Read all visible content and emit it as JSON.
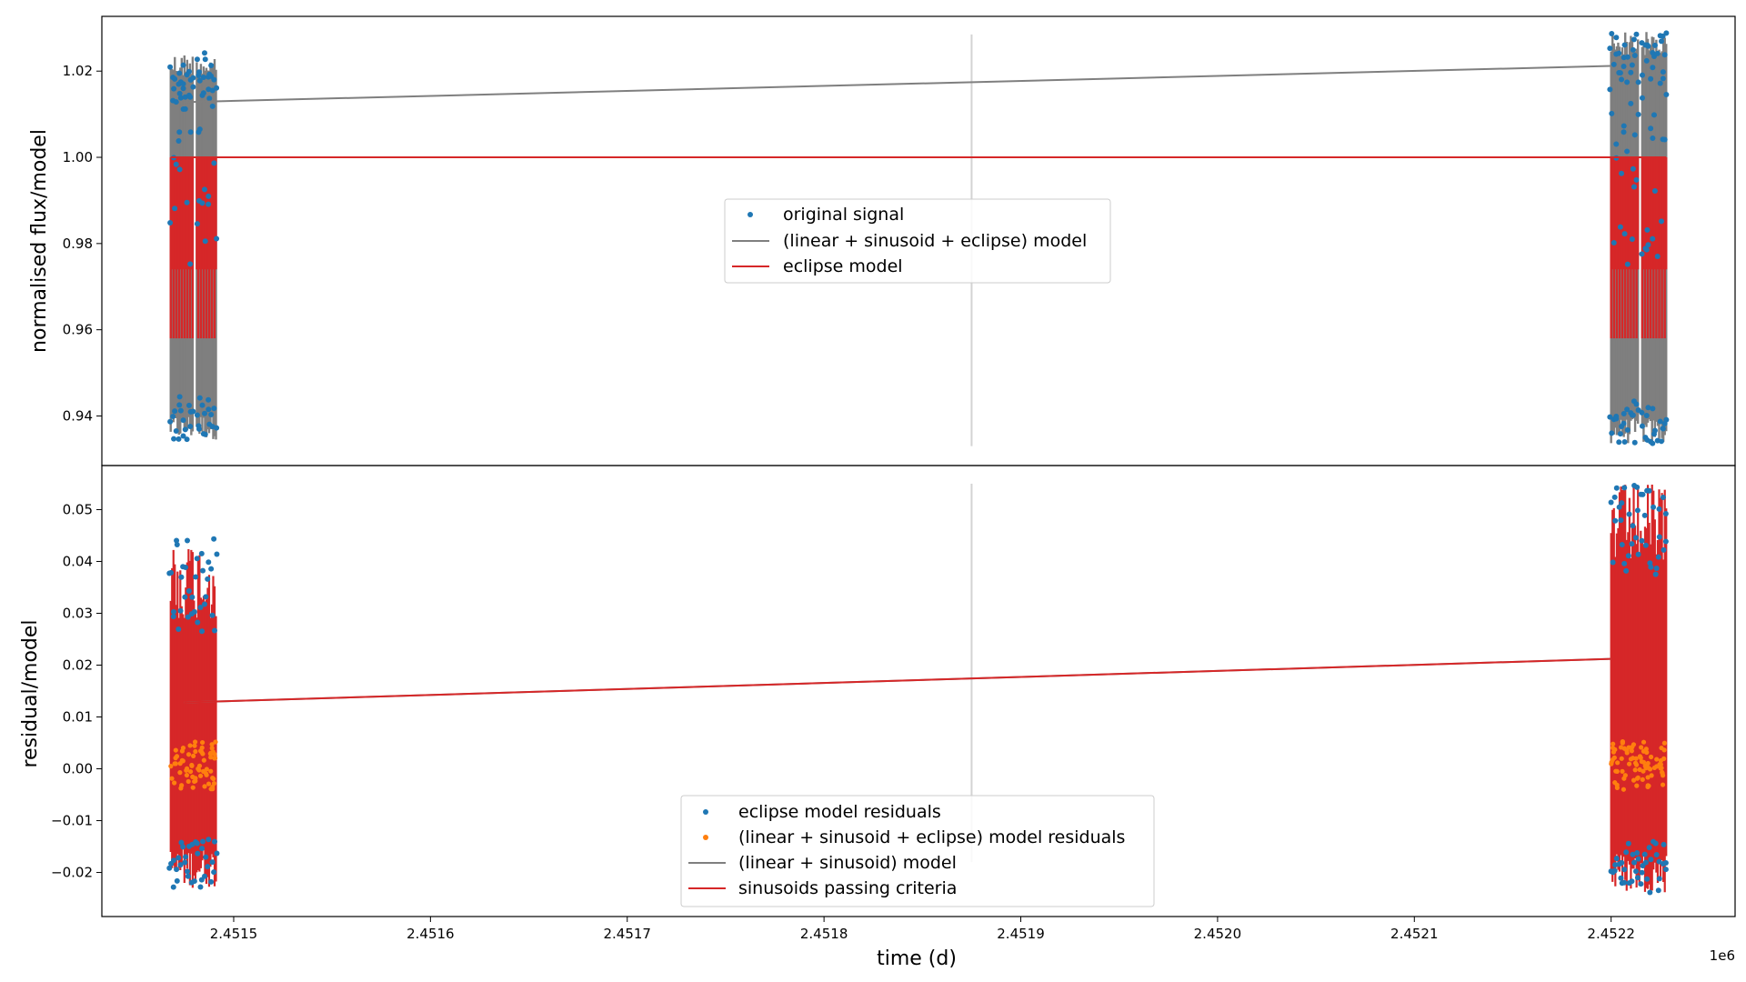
{
  "chart_data": [
    {
      "type": "scatter",
      "panel": "top",
      "ylabel": "normalised flux/model",
      "xlim": [
        2451433,
        2452263
      ],
      "ylim": [
        0.9285,
        1.0327
      ],
      "yticks": [
        0.94,
        0.96,
        0.98,
        1.0,
        1.02
      ],
      "ytick_labels": [
        "0.94",
        "0.96",
        "0.98",
        "1.00",
        "1.02"
      ],
      "grid": false,
      "legend_placement": "center",
      "series": [
        {
          "name": "original signal",
          "kind": "scatter",
          "color": "#1f77b4"
        },
        {
          "name": "(linear + sinusoid + eclipse) model",
          "kind": "line",
          "color": "#7f7f7f",
          "x": [
            2451475,
            2452200
          ],
          "y": [
            1.0128,
            1.0212
          ]
        },
        {
          "name": "eclipse model",
          "kind": "line",
          "color": "#d62728",
          "x": [
            2451468,
            2452228
          ],
          "y": [
            1.0,
            1.0
          ]
        }
      ],
      "clusters": [
        {
          "x_start": 2451468,
          "x_end": 2451491,
          "y_min": 0.9345,
          "y_max": 1.0243
        },
        {
          "x_start": 2452200,
          "x_end": 2452228,
          "y_min": 0.9335,
          "y_max": 1.0292
        }
      ],
      "eclipse_depths": [
        0.974,
        0.958
      ],
      "vline": {
        "x": 2451875,
        "y_range": [
          0.933,
          1.0285
        ],
        "color": "#d3d3d3"
      }
    },
    {
      "type": "scatter",
      "panel": "bottom",
      "ylabel": "residual/model",
      "xlabel": "time (d)",
      "x_offset_label": "1e6",
      "xlim": [
        2451433,
        2452263
      ],
      "ylim": [
        -0.0285,
        0.0585
      ],
      "xticks": [
        2451500,
        2451600,
        2451700,
        2451800,
        2451900,
        2452000,
        2452100,
        2452200
      ],
      "xtick_labels": [
        "2.4515",
        "2.4516",
        "2.4517",
        "2.4518",
        "2.4519",
        "2.4520",
        "2.4521",
        "2.4522"
      ],
      "yticks": [
        -0.02,
        -0.01,
        0.0,
        0.01,
        0.02,
        0.03,
        0.04,
        0.05
      ],
      "ytick_labels": [
        "−0.02",
        "−0.01",
        "0.00",
        "0.01",
        "0.02",
        "0.03",
        "0.04",
        "0.05"
      ],
      "grid": false,
      "legend_placement": "lower center",
      "series": [
        {
          "name": "eclipse model residuals",
          "kind": "scatter",
          "color": "#1f77b4"
        },
        {
          "name": "(linear + sinusoid + eclipse) model residuals",
          "kind": "scatter",
          "color": "#ff7f0e"
        },
        {
          "name": "(linear + sinusoid) model",
          "kind": "line",
          "color": "#7f7f7f",
          "x": [
            2451475,
            2452200
          ],
          "y": [
            0.0128,
            0.0212
          ]
        },
        {
          "name": "sinusoids passing criteria",
          "kind": "line",
          "color": "#d62728",
          "x": [
            2451475,
            2452200
          ],
          "y": [
            0.0128,
            0.0212
          ]
        }
      ],
      "clusters": [
        {
          "x_start": 2451468,
          "x_end": 2451491,
          "y_min": -0.023,
          "y_max": 0.0445
        },
        {
          "x_start": 2452200,
          "x_end": 2452228,
          "y_min": -0.024,
          "y_max": 0.055
        }
      ],
      "vline": {
        "x": 2451875,
        "y_range": [
          -0.018,
          0.055
        ],
        "color": "#d3d3d3"
      }
    }
  ]
}
